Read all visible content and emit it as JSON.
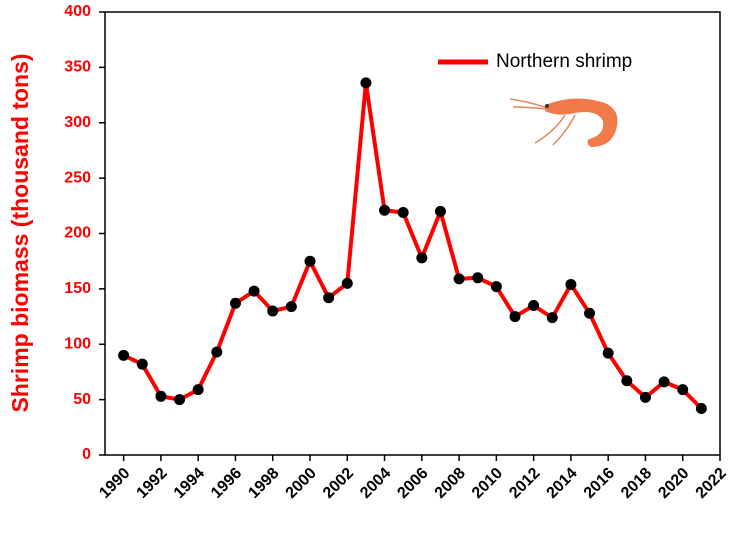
{
  "chart_data": {
    "type": "line",
    "y_label": "Shrimp biomass (thousand tons)",
    "x": [
      1990,
      1991,
      1992,
      1993,
      1994,
      1995,
      1996,
      1997,
      1998,
      1999,
      2000,
      2001,
      2002,
      2003,
      2004,
      2005,
      2006,
      2007,
      2008,
      2009,
      2010,
      2011,
      2012,
      2013,
      2014,
      2015,
      2016,
      2017,
      2018,
      2019,
      2020,
      2021
    ],
    "series": [
      {
        "name": "Northern shrimp",
        "color": "#ff0000",
        "marker_color": "#000000",
        "values": [
          90,
          82,
          53,
          50,
          59,
          93,
          137,
          148,
          130,
          134,
          175,
          142,
          155,
          336,
          221,
          219,
          178,
          220,
          159,
          160,
          152,
          125,
          135,
          124,
          154,
          128,
          92,
          67,
          52,
          66,
          59,
          42
        ]
      }
    ],
    "xlim": [
      1989,
      2022
    ],
    "xticks": [
      1990,
      1992,
      1994,
      1996,
      1998,
      2000,
      2002,
      2004,
      2006,
      2008,
      2010,
      2012,
      2014,
      2016,
      2018,
      2020,
      2022
    ],
    "ylim": [
      0,
      400
    ],
    "yticks": [
      0,
      50,
      100,
      150,
      200,
      250,
      300,
      350,
      400
    ],
    "legend": "upper right",
    "grid": false
  }
}
